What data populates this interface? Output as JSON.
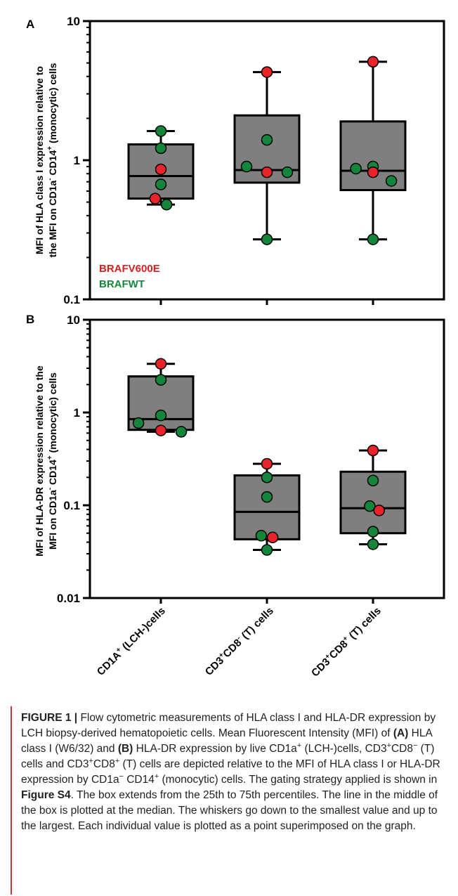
{
  "panels": [
    {
      "letter": "A",
      "ylabel_line1": "MFI of HLA class I expression relative to",
      "ylabel_line2_pre": "the MFI on CD1a",
      "ylabel_line2_sup1": "-",
      "ylabel_line2_mid": "CD14",
      "ylabel_line2_sup2": "+",
      "ylabel_line2_post": "(monocytic) cells"
    },
    {
      "letter": "B",
      "ylabel_line1": "MFI of HLA-DR expression relative to the",
      "ylabel_line2_pre": "MFI on CD1a",
      "ylabel_line2_sup1": "-",
      "ylabel_line2_mid": "CD14",
      "ylabel_line2_sup2": "+",
      "ylabel_line2_post": "(monocytic) cells"
    }
  ],
  "legend": [
    {
      "label": "BRAFV600E",
      "color": "#d42020"
    },
    {
      "label": "BRAFWT",
      "color": "#14883a"
    }
  ],
  "colors": {
    "box": "#7f7f7f",
    "mutant": "#e8232a",
    "wildtype": "#13863c"
  },
  "x_categories": [
    {
      "base1": "CD1A",
      "sup1": "+",
      "rest": " (LCH-)cells"
    },
    {
      "base1": "CD3",
      "sup1": "+",
      "base2": "CD8",
      "sup2": "-",
      "rest": " (T) cells"
    },
    {
      "base1": "CD3",
      "sup1": "+",
      "base2": "CD8",
      "sup2": "+",
      "rest": " (T) cells"
    }
  ],
  "chart_data": [
    {
      "type": "box",
      "panel": "A",
      "yscale": "log",
      "ylim": [
        0.1,
        10
      ],
      "yticks": [
        {
          "value": 0.1,
          "label": "0.1"
        },
        {
          "value": 1,
          "label": "1"
        },
        {
          "value": 10,
          "label": "10"
        }
      ],
      "boxes": [
        {
          "category": "CD1A+ (LCH-)cells",
          "min": 0.48,
          "q1": 0.53,
          "median": 0.77,
          "q3": 1.3,
          "max": 1.62
        },
        {
          "category": "CD3+CD8- (T) cells",
          "min": 0.27,
          "q1": 0.69,
          "median": 0.85,
          "q3": 2.1,
          "max": 4.3
        },
        {
          "category": "CD3+CD8+ (T) cells",
          "min": 0.27,
          "q1": 0.61,
          "median": 0.84,
          "q3": 1.9,
          "max": 5.1
        }
      ],
      "points": [
        {
          "category": 0,
          "value": 1.62,
          "group": "BRAFWT",
          "offset": 0
        },
        {
          "category": 0,
          "value": 1.22,
          "group": "BRAFWT",
          "offset": 0
        },
        {
          "category": 0,
          "value": 0.86,
          "group": "BRAFV600E",
          "offset": 0
        },
        {
          "category": 0,
          "value": 0.67,
          "group": "BRAFWT",
          "offset": 0
        },
        {
          "category": 0,
          "value": 0.53,
          "group": "BRAFV600E",
          "offset": -0.14
        },
        {
          "category": 0,
          "value": 0.48,
          "group": "BRAFWT",
          "offset": 0.14
        },
        {
          "category": 1,
          "value": 4.3,
          "group": "BRAFV600E",
          "offset": 0
        },
        {
          "category": 1,
          "value": 1.4,
          "group": "BRAFWT",
          "offset": 0
        },
        {
          "category": 1,
          "value": 0.9,
          "group": "BRAFWT",
          "offset": -0.5
        },
        {
          "category": 1,
          "value": 0.82,
          "group": "BRAFV600E",
          "offset": 0
        },
        {
          "category": 1,
          "value": 0.82,
          "group": "BRAFWT",
          "offset": 0.5
        },
        {
          "category": 1,
          "value": 0.27,
          "group": "BRAFWT",
          "offset": 0
        },
        {
          "category": 2,
          "value": 5.1,
          "group": "BRAFV600E",
          "offset": 0
        },
        {
          "category": 2,
          "value": 0.9,
          "group": "BRAFWT",
          "offset": 0
        },
        {
          "category": 2,
          "value": 0.87,
          "group": "BRAFWT",
          "offset": -0.42
        },
        {
          "category": 2,
          "value": 0.82,
          "group": "BRAFV600E",
          "offset": 0
        },
        {
          "category": 2,
          "value": 0.71,
          "group": "BRAFWT",
          "offset": 0.45
        },
        {
          "category": 2,
          "value": 0.27,
          "group": "BRAFWT",
          "offset": 0
        }
      ]
    },
    {
      "type": "box",
      "panel": "B",
      "yscale": "log",
      "ylim": [
        0.01,
        10
      ],
      "yticks": [
        {
          "value": 0.01,
          "label": "0.01"
        },
        {
          "value": 0.1,
          "label": "0.1"
        },
        {
          "value": 1,
          "label": "1"
        },
        {
          "value": 10,
          "label": "10"
        }
      ],
      "boxes": [
        {
          "category": "CD1A+ (LCH-)cells",
          "min": 0.62,
          "q1": 0.65,
          "median": 0.85,
          "q3": 2.45,
          "max": 3.35
        },
        {
          "category": "CD3+CD8- (T) cells",
          "min": 0.033,
          "q1": 0.043,
          "median": 0.085,
          "q3": 0.21,
          "max": 0.28
        },
        {
          "category": "CD3+CD8+ (T) cells",
          "min": 0.038,
          "q1": 0.05,
          "median": 0.093,
          "q3": 0.23,
          "max": 0.39
        }
      ],
      "points": [
        {
          "category": 0,
          "value": 3.35,
          "group": "BRAFV600E",
          "offset": 0
        },
        {
          "category": 0,
          "value": 2.25,
          "group": "BRAFWT",
          "offset": 0
        },
        {
          "category": 0,
          "value": 0.93,
          "group": "BRAFWT",
          "offset": 0
        },
        {
          "category": 0,
          "value": 0.77,
          "group": "BRAFWT",
          "offset": -0.55
        },
        {
          "category": 0,
          "value": 0.64,
          "group": "BRAFV600E",
          "offset": 0
        },
        {
          "category": 0,
          "value": 0.62,
          "group": "BRAFWT",
          "offset": 0.5
        },
        {
          "category": 1,
          "value": 0.28,
          "group": "BRAFV600E",
          "offset": 0
        },
        {
          "category": 1,
          "value": 0.2,
          "group": "BRAFWT",
          "offset": 0
        },
        {
          "category": 1,
          "value": 0.123,
          "group": "BRAFWT",
          "offset": 0
        },
        {
          "category": 1,
          "value": 0.047,
          "group": "BRAFWT",
          "offset": -0.14
        },
        {
          "category": 1,
          "value": 0.045,
          "group": "BRAFV600E",
          "offset": 0.14
        },
        {
          "category": 1,
          "value": 0.033,
          "group": "BRAFWT",
          "offset": 0
        },
        {
          "category": 2,
          "value": 0.39,
          "group": "BRAFV600E",
          "offset": 0
        },
        {
          "category": 2,
          "value": 0.185,
          "group": "BRAFWT",
          "offset": 0
        },
        {
          "category": 2,
          "value": 0.098,
          "group": "BRAFWT",
          "offset": -0.08
        },
        {
          "category": 2,
          "value": 0.088,
          "group": "BRAFV600E",
          "offset": 0.15
        },
        {
          "category": 2,
          "value": 0.052,
          "group": "BRAFWT",
          "offset": 0
        },
        {
          "category": 2,
          "value": 0.038,
          "group": "BRAFWT",
          "offset": 0
        }
      ]
    }
  ],
  "caption": {
    "figure_label": "FIGURE 1 |",
    "seg1": " Flow cytometric measurements of HLA class I and HLA-DR expression by LCH biopsy-derived hematopoietic cells. Mean Fluorescent Intensity (MFI) of ",
    "ref_a": "(A)",
    "seg2": " HLA class I (W6/32) and ",
    "ref_b": "(B)",
    "seg3": " HLA-DR expression by live CD1a",
    "sup_plus1": "+",
    "seg4": " (LCH-)cells, CD3",
    "sup_plus2": "+",
    "seg5": "CD8",
    "sup_minus1": "−",
    "seg6": " (T) cells and CD3",
    "sup_plus3": "+",
    "seg7": "CD8",
    "sup_plus4": "+",
    "seg8": " (T) cells are depicted relative to the MFI of HLA class I or HLA-DR expression by CD1a",
    "sup_minus2": "−",
    "seg9": " CD14",
    "sup_plus5": "+",
    "seg10": " (monocytic) cells. The gating strategy applied is shown in ",
    "ref_fig": "Figure S4",
    "seg11": ". The box extends from the 25th to 75th percentiles. The line in the middle of the box is plotted at the median. The whiskers go down to the smallest value and up to the largest. Each individual value is plotted as a point superimposed on the graph."
  }
}
